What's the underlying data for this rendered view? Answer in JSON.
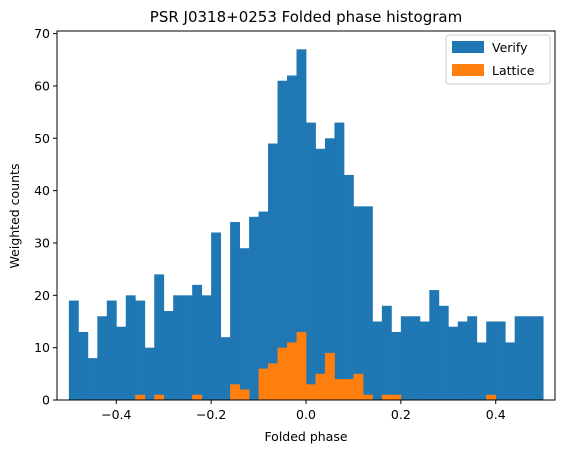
{
  "chart_data": {
    "type": "bar",
    "title": "PSR J0318+0253 Folded phase histogram",
    "xlabel": "Folded phase",
    "ylabel": "Weighted counts",
    "xlim": [
      -0.525,
      0.525
    ],
    "ylim": [
      0,
      70.5
    ],
    "x_ticks": [
      -0.4,
      -0.2,
      0.0,
      0.2,
      0.4
    ],
    "x_tick_labels": [
      "−0.4",
      "−0.2",
      "0.0",
      "0.2",
      "0.4"
    ],
    "y_ticks": [
      0,
      10,
      20,
      30,
      40,
      50,
      60,
      70
    ],
    "y_tick_labels": [
      "0",
      "10",
      "20",
      "30",
      "40",
      "50",
      "60",
      "70"
    ],
    "bin_range": [
      -0.5,
      0.5
    ],
    "bin_width": 0.02,
    "grid": false,
    "legend_position": "top-right",
    "series": [
      {
        "name": "Verify",
        "color": "#1f77b4",
        "values": [
          19,
          13,
          8,
          16,
          19,
          14,
          20,
          19,
          10,
          24,
          17,
          20,
          20,
          22,
          20,
          32,
          12,
          34,
          29,
          35,
          36,
          49,
          61,
          62,
          67,
          53,
          48,
          50,
          53,
          43,
          37,
          37,
          15,
          18,
          13,
          16,
          16,
          15,
          21,
          18,
          14,
          15,
          16,
          11,
          15,
          15,
          11,
          16,
          16,
          16
        ]
      },
      {
        "name": "Lattice",
        "color": "#ff7f0e",
        "values": [
          0,
          0,
          0,
          0,
          0,
          0,
          0,
          1,
          0,
          1,
          0,
          0,
          0,
          1,
          0,
          0,
          0,
          3,
          2,
          0,
          6,
          7,
          10,
          11,
          13,
          3,
          5,
          9,
          4,
          4,
          5,
          1,
          0,
          1,
          1,
          0,
          0,
          0,
          0,
          0,
          0,
          0,
          0,
          0,
          1,
          0,
          0,
          0,
          0,
          0
        ]
      }
    ]
  }
}
